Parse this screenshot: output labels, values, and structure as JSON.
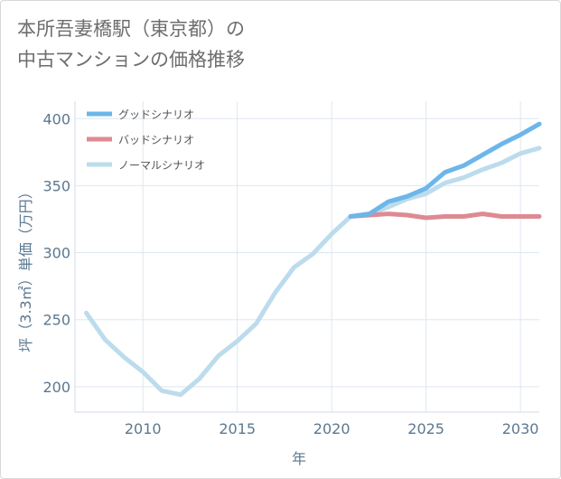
{
  "title": {
    "line1": "本所吾妻橋駅（東京都）の",
    "line2": "中古マンションの価格推移"
  },
  "chart_data": {
    "type": "line",
    "xlabel": "年",
    "ylabel": "坪（3.3㎡）単価（万円）",
    "xlim": [
      2006.4,
      2031
    ],
    "ylim": [
      181,
      413
    ],
    "x_ticks": [
      2010,
      2015,
      2020,
      2025,
      2030
    ],
    "y_ticks": [
      200,
      250,
      300,
      350,
      400
    ],
    "grid": true,
    "legend_position": "top-left",
    "series": [
      {
        "name": "グッドシナリオ",
        "color": "#6cb6ea",
        "x": [
          2021,
          2022,
          2023,
          2024,
          2025,
          2026,
          2027,
          2028,
          2029,
          2030,
          2031
        ],
        "y": [
          327,
          329,
          338,
          342,
          348,
          360,
          365,
          373,
          381,
          388,
          396
        ]
      },
      {
        "name": "バッドシナリオ",
        "color": "#de8a92",
        "x": [
          2021,
          2022,
          2023,
          2024,
          2025,
          2026,
          2027,
          2028,
          2029,
          2030,
          2031
        ],
        "y": [
          327,
          328,
          329,
          328,
          326,
          327,
          327,
          329,
          327,
          327,
          327
        ]
      },
      {
        "name": "ノーマルシナリオ",
        "color": "#bcdcec",
        "x": [
          2007,
          2008,
          2009,
          2010,
          2011,
          2012,
          2013,
          2014,
          2015,
          2016,
          2017,
          2018,
          2019,
          2020,
          2021,
          2022,
          2023,
          2024,
          2025,
          2026,
          2027,
          2028,
          2029,
          2030,
          2031
        ],
        "y": [
          255,
          235,
          222,
          211,
          197,
          194,
          206,
          223,
          234,
          247,
          270,
          289,
          299,
          314,
          327,
          329,
          334,
          340,
          344,
          352,
          356,
          362,
          367,
          374,
          378
        ]
      }
    ]
  }
}
